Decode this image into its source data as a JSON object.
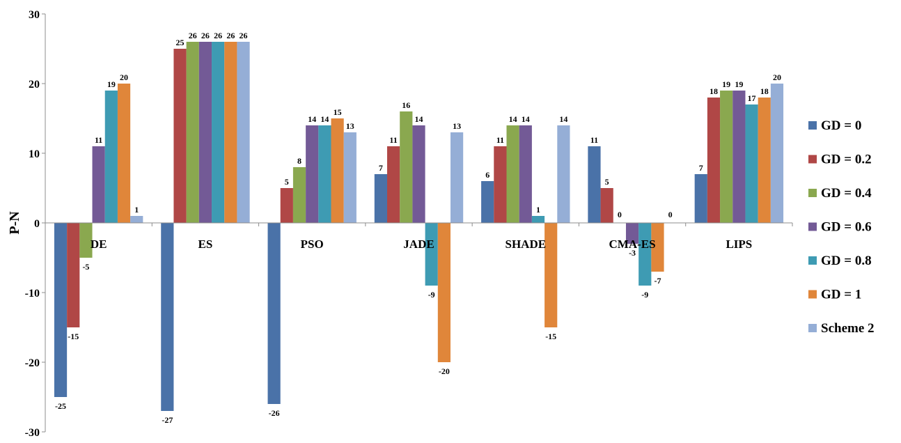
{
  "chart_data": {
    "type": "bar",
    "title": "",
    "xlabel": "",
    "ylabel": "P-N",
    "ylim": [
      -30,
      30
    ],
    "yticks": [
      30,
      20,
      10,
      0,
      -10,
      -20,
      -30
    ],
    "grid": false,
    "legend_position": "right",
    "categories": [
      "DE",
      "ES",
      "PSO",
      "JADE",
      "SHADE",
      "CMA-ES",
      "LIPS"
    ],
    "series": [
      {
        "name": "GD = 0",
        "color": "#4a72a8",
        "values": [
          -25,
          -27,
          -26,
          7,
          6,
          11,
          7
        ],
        "labels": [
          "-25",
          "-27",
          "-26",
          "7",
          "6",
          "11",
          "7"
        ]
      },
      {
        "name": "GD = 0.2",
        "color": "#b04746",
        "values": [
          -15,
          25,
          5,
          11,
          11,
          5,
          18
        ],
        "labels": [
          "-15",
          "25",
          "5",
          "11",
          "11",
          "5",
          "18"
        ]
      },
      {
        "name": "GD = 0.4",
        "color": "#8aa84f",
        "values": [
          -5,
          26,
          8,
          16,
          14,
          0,
          19
        ],
        "labels": [
          "-5",
          "26",
          "8",
          "16",
          "14",
          "0",
          "19"
        ]
      },
      {
        "name": "GD = 0.6",
        "color": "#735a96",
        "values": [
          11,
          26,
          14,
          14,
          14,
          -3,
          19
        ],
        "labels": [
          "11",
          "26",
          "14",
          "14",
          "14",
          "-3",
          "19"
        ]
      },
      {
        "name": "GD = 0.8",
        "color": "#3e9bb3",
        "values": [
          19,
          26,
          14,
          -9,
          1,
          -9,
          17
        ],
        "labels": [
          "19",
          "26",
          "14",
          "-9",
          "1",
          "-9",
          "17"
        ]
      },
      {
        "name": "GD = 1",
        "color": "#e0863a",
        "values": [
          20,
          26,
          15,
          -20,
          -15,
          -7,
          18
        ],
        "labels": [
          "20",
          "26",
          "15",
          "-20",
          "-15",
          "-7",
          "18"
        ]
      },
      {
        "name": "Scheme 2",
        "color": "#95aed6",
        "values": [
          1,
          26,
          13,
          13,
          14,
          0,
          20
        ],
        "labels": [
          "1",
          "26",
          "13",
          "13",
          "14",
          "0",
          "20"
        ]
      }
    ]
  }
}
